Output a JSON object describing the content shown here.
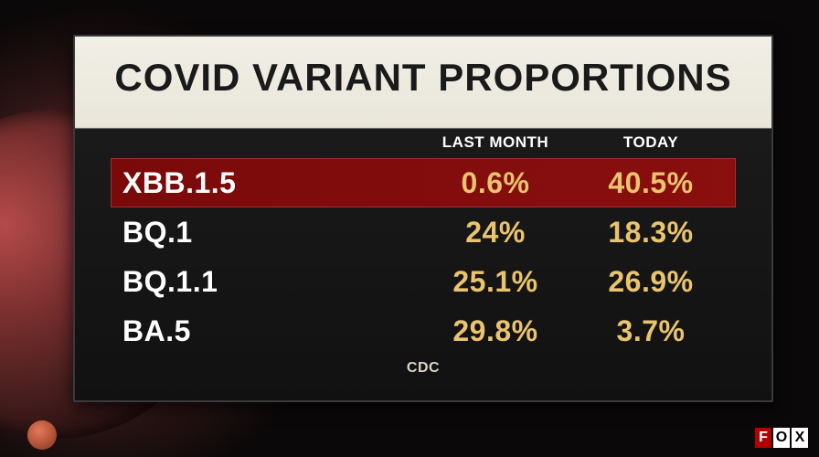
{
  "panel": {
    "title": "COVID VARIANT PROPORTIONS",
    "columns": {
      "blank": "",
      "last_month": "LAST MONTH",
      "today": "TODAY"
    },
    "source_label": "CDC",
    "style": {
      "title_text_color": "#1a1a1a",
      "title_bg_top": "#f1efe6",
      "title_bg_bottom": "#e9e6da",
      "body_bg": "#111111",
      "value_color": "#e9c36d",
      "variant_name_color": "#ffffff",
      "highlight_bg_from": "#7a0a0a",
      "highlight_bg_to": "#8a0f0f",
      "header_font_size_pt": 13,
      "row_font_size_pt": 24,
      "title_font_size_pt": 32
    }
  },
  "variants": [
    {
      "name": "XBB.1.5",
      "last_month": "0.6%",
      "today": "40.5%",
      "highlight": true
    },
    {
      "name": "BQ.1",
      "last_month": "24%",
      "today": "18.3%",
      "highlight": false
    },
    {
      "name": "BQ.1.1",
      "last_month": "25.1%",
      "today": "26.9%",
      "highlight": false
    },
    {
      "name": "BA.5",
      "last_month": "29.8%",
      "today": "3.7%",
      "highlight": false
    }
  ],
  "network_logo": {
    "letters": [
      "F",
      "O",
      "X"
    ]
  },
  "colors": {
    "virus_sphere": "#7a2f2f",
    "spike": "#e07a5a",
    "value_text": "#e9c36d",
    "panel_border": "#3a3a3a",
    "background": "#0c0a0a"
  }
}
